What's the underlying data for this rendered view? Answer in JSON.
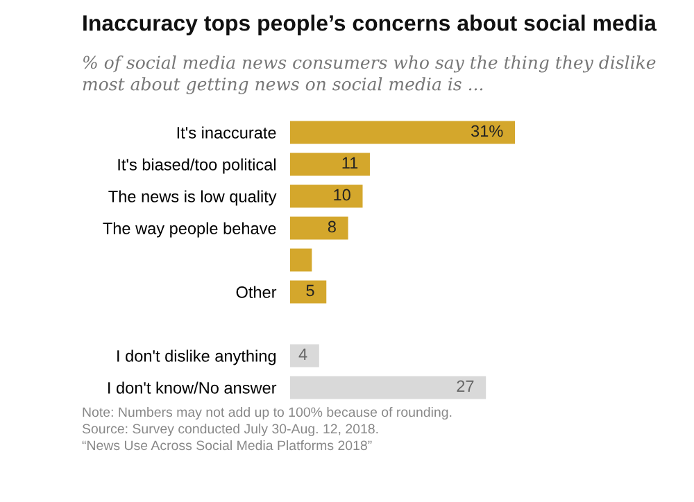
{
  "chart_data": {
    "type": "bar",
    "orientation": "horizontal",
    "title": "Inaccuracy tops people’s concerns about social media",
    "subtitle": "% of social media news consumers who say the thing they dislike most about getting news on social media is ...",
    "categories": [
      "It's inaccurate",
      "It's biased/too political",
      "The news is low quality",
      "The way people behave",
      null,
      "Other",
      "I don't dislike anything",
      "I don't know/No answer"
    ],
    "values": [
      31,
      11,
      10,
      8,
      3,
      5,
      4,
      27
    ],
    "value_labels": [
      "31%",
      "11",
      "10",
      "8",
      null,
      "5",
      "4",
      "27"
    ],
    "colors": [
      "#d4a72c",
      "#d4a72c",
      "#d4a72c",
      "#d4a72c",
      "#d4a72c",
      "#d4a72c",
      "#d9d9d9",
      "#d9d9d9"
    ],
    "annotations": [
      "Note: Numbers may not add up to 100% because of rounding.",
      "Source: Survey conducted July 30-Aug. 12, 2018.",
      "“News Use Across Social Media Platforms 2018”"
    ],
    "grid": false
  }
}
